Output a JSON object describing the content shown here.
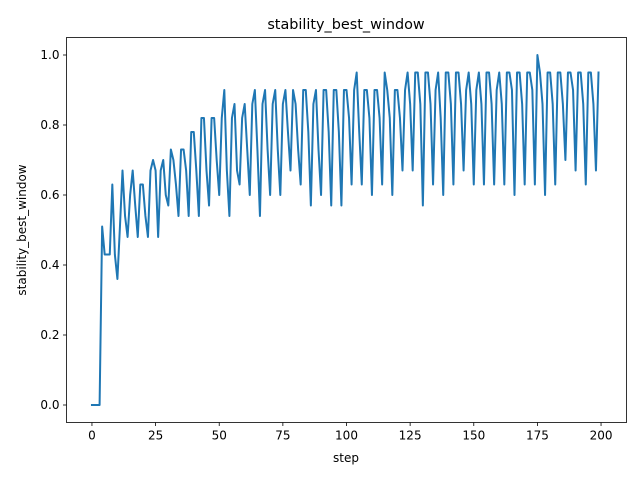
{
  "chart_data": {
    "type": "line",
    "title": "stability_best_window",
    "xlabel": "step",
    "ylabel": "stability_best_window",
    "xlim": [
      -10,
      210
    ],
    "ylim": [
      -0.05,
      1.05
    ],
    "xticks": [
      0,
      25,
      50,
      75,
      100,
      125,
      150,
      175,
      200
    ],
    "yticks": [
      0.0,
      0.2,
      0.4,
      0.6,
      0.8,
      1.0
    ],
    "xtick_labels": [
      "0",
      "25",
      "50",
      "75",
      "100",
      "125",
      "150",
      "175",
      "200"
    ],
    "ytick_labels": [
      "0.0",
      "0.2",
      "0.4",
      "0.6",
      "0.8",
      "1.0"
    ],
    "grid": false,
    "colors": {
      "line": "#1f77b4"
    },
    "series": [
      {
        "x": [
          0,
          1,
          2,
          3,
          4,
          5,
          6,
          7,
          8,
          9,
          10,
          11,
          12,
          13,
          14,
          15,
          16,
          17,
          18,
          19,
          20,
          21,
          22,
          23,
          24,
          25,
          26,
          27,
          28,
          29,
          30,
          31,
          32,
          33,
          34,
          35,
          36,
          37,
          38,
          39,
          40,
          41,
          42,
          43,
          44,
          45,
          46,
          47,
          48,
          49,
          50,
          51,
          52,
          53,
          54,
          55,
          56,
          57,
          58,
          59,
          60,
          61,
          62,
          63,
          64,
          65,
          66,
          67,
          68,
          69,
          70,
          71,
          72,
          73,
          74,
          75,
          76,
          77,
          78,
          79,
          80,
          81,
          82,
          83,
          84,
          85,
          86,
          87,
          88,
          89,
          90,
          91,
          92,
          93,
          94,
          95,
          96,
          97,
          98,
          99,
          100,
          101,
          102,
          103,
          104,
          105,
          106,
          107,
          108,
          109,
          110,
          111,
          112,
          113,
          114,
          115,
          116,
          117,
          118,
          119,
          120,
          121,
          122,
          123,
          124,
          125,
          126,
          127,
          128,
          129,
          130,
          131,
          132,
          133,
          134,
          135,
          136,
          137,
          138,
          139,
          140,
          141,
          142,
          143,
          144,
          145,
          146,
          147,
          148,
          149,
          150,
          151,
          152,
          153,
          154,
          155,
          156,
          157,
          158,
          159,
          160,
          161,
          162,
          163,
          164,
          165,
          166,
          167,
          168,
          169,
          170,
          171,
          172,
          173,
          174,
          175,
          176,
          177,
          178,
          179,
          180,
          181,
          182,
          183,
          184,
          185,
          186,
          187,
          188,
          189,
          190,
          191,
          192,
          193,
          194,
          195,
          196,
          197,
          198,
          199
        ],
        "values": [
          0.0,
          0.0,
          0.0,
          0.0,
          0.51,
          0.43,
          0.43,
          0.43,
          0.63,
          0.43,
          0.36,
          0.51,
          0.67,
          0.54,
          0.48,
          0.6,
          0.67,
          0.57,
          0.48,
          0.63,
          0.63,
          0.54,
          0.48,
          0.67,
          0.7,
          0.67,
          0.48,
          0.67,
          0.7,
          0.6,
          0.57,
          0.73,
          0.7,
          0.63,
          0.54,
          0.73,
          0.73,
          0.67,
          0.54,
          0.78,
          0.78,
          0.67,
          0.54,
          0.82,
          0.82,
          0.67,
          0.57,
          0.82,
          0.82,
          0.7,
          0.6,
          0.82,
          0.9,
          0.67,
          0.54,
          0.82,
          0.86,
          0.67,
          0.63,
          0.82,
          0.86,
          0.73,
          0.6,
          0.86,
          0.9,
          0.73,
          0.54,
          0.86,
          0.9,
          0.73,
          0.6,
          0.86,
          0.9,
          0.73,
          0.6,
          0.86,
          0.9,
          0.78,
          0.67,
          0.9,
          0.86,
          0.73,
          0.63,
          0.9,
          0.9,
          0.78,
          0.57,
          0.86,
          0.9,
          0.73,
          0.6,
          0.9,
          0.9,
          0.78,
          0.57,
          0.9,
          0.9,
          0.78,
          0.57,
          0.9,
          0.9,
          0.82,
          0.63,
          0.9,
          0.95,
          0.78,
          0.63,
          0.9,
          0.9,
          0.82,
          0.6,
          0.9,
          0.9,
          0.82,
          0.63,
          0.95,
          0.9,
          0.82,
          0.6,
          0.9,
          0.9,
          0.82,
          0.67,
          0.9,
          0.95,
          0.86,
          0.67,
          0.95,
          0.95,
          0.86,
          0.57,
          0.95,
          0.95,
          0.86,
          0.63,
          0.9,
          0.95,
          0.82,
          0.6,
          0.95,
          0.95,
          0.86,
          0.63,
          0.95,
          0.95,
          0.86,
          0.67,
          0.9,
          0.95,
          0.86,
          0.63,
          0.9,
          0.95,
          0.86,
          0.63,
          0.95,
          0.95,
          0.86,
          0.63,
          0.9,
          0.95,
          0.86,
          0.63,
          0.95,
          0.95,
          0.9,
          0.6,
          0.95,
          0.95,
          0.86,
          0.63,
          0.95,
          0.95,
          0.9,
          0.63,
          1.0,
          0.95,
          0.86,
          0.6,
          0.95,
          0.95,
          0.86,
          0.63,
          0.95,
          0.95,
          0.86,
          0.7,
          0.95,
          0.95,
          0.9,
          0.67,
          0.95,
          0.95,
          0.86,
          0.63,
          0.95,
          0.95,
          0.86,
          0.67,
          0.95
        ]
      }
    ]
  }
}
